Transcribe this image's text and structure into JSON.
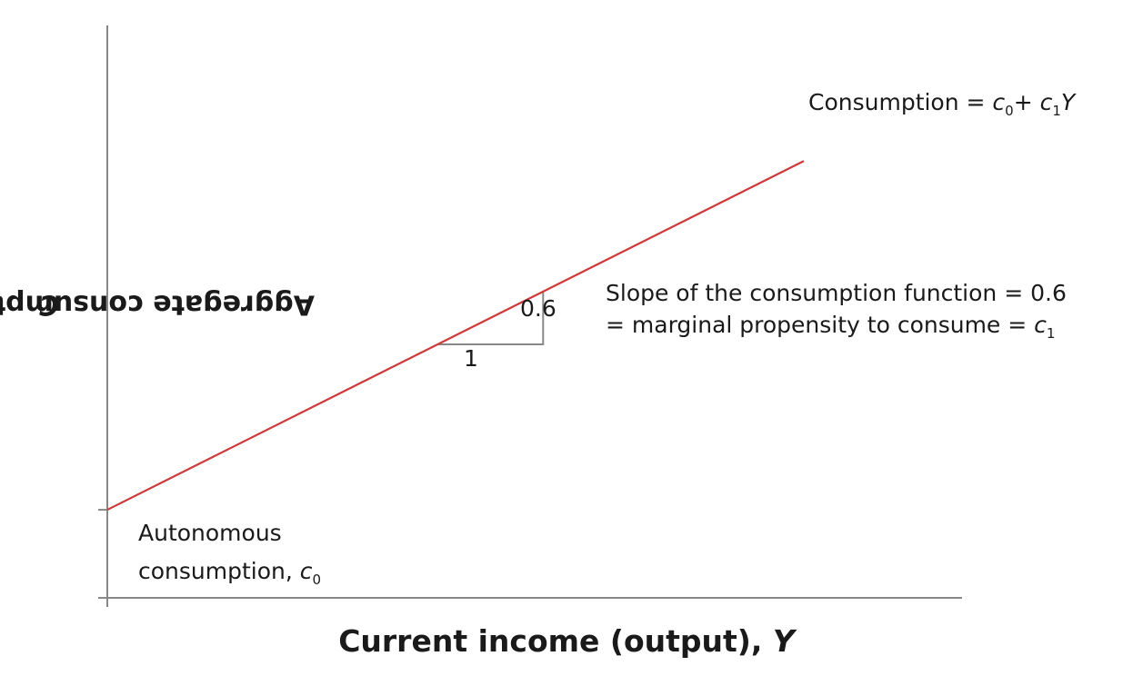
{
  "chart_data": {
    "type": "line",
    "xlabel": "Current income (output), ",
    "xlabel_var": "Y",
    "ylabel": "Aggregate consumption spending, ",
    "ylabel_var": "C",
    "series": [
      {
        "name": "Consumption = ",
        "name_c0": "c",
        "name_c0_sub": "0",
        "name_plus": "+ ",
        "name_c1": "c",
        "name_c1_sub": "1",
        "name_y": "Y",
        "slope": 0.6,
        "x": [
          0,
          6.6
        ],
        "y": [
          1,
          4.96
        ],
        "color": "#d0393a"
      }
    ],
    "xlim": [
      0,
      8.1
    ],
    "ylim": [
      0,
      6.5
    ],
    "grid": false,
    "annotations": {
      "slope_rise": "0.6",
      "slope_run": "1",
      "slope_line1": "Slope of the consumption function = 0.6",
      "slope_line2": "= marginal propensity to consume = ",
      "slope_line2_var": "c",
      "slope_line2_sub": "1",
      "autonomous_line1": "Autonomous",
      "autonomous_line2": "consumption, ",
      "autonomous_var": "c",
      "autonomous_sub": "0"
    },
    "colors": {
      "line": "#d0393a",
      "axis": "#888888",
      "triangle": "#888888"
    }
  }
}
